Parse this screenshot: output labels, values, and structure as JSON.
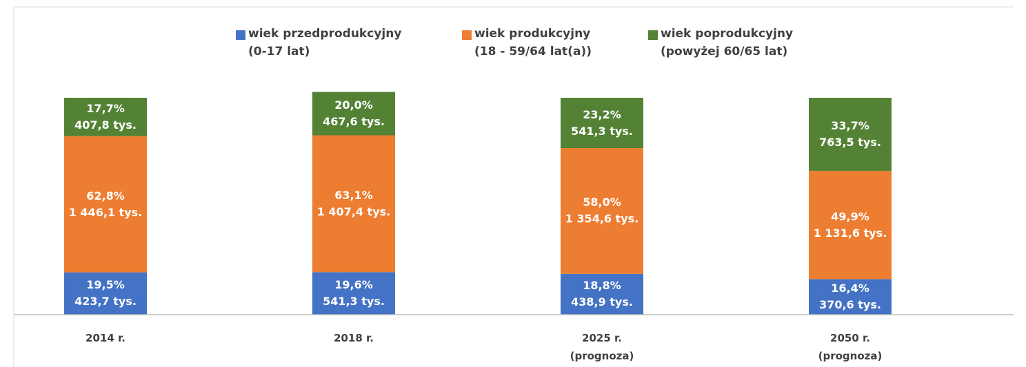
{
  "chart_data": {
    "type": "stacked_bar",
    "categories": [
      "2014 r.",
      "2018 r.",
      "2025 r.\n(prognoza)",
      "2050 r.\n(prognoza)"
    ],
    "ylim": [
      0,
      100
    ],
    "legend": "top",
    "series": [
      {
        "name": "wiek przedprodukcyjny\n(0-17 lat)",
        "color": "#4472c4",
        "values": [
          19.5,
          19.6,
          18.8,
          16.4
        ],
        "value_labels": [
          "19,5%",
          "19,6%",
          "18,8%",
          "16,4%"
        ],
        "count_labels": [
          "423,7 tys.",
          "541,3 tys.",
          "438,9 tys.",
          "370,6 tys."
        ]
      },
      {
        "name": "wiek produkcyjny\n(18 - 59/64 lat(a))",
        "color": "#ed7d31",
        "values": [
          62.8,
          63.1,
          58.0,
          49.9
        ],
        "value_labels": [
          "62,8%",
          "63,1%",
          "58,0%",
          "49,9%"
        ],
        "count_labels": [
          "1 446,1 tys.",
          "1 407,4 tys.",
          "1 354,6 tys.",
          "1 131,6 tys."
        ]
      },
      {
        "name": "wiek poprodukcyjny\n(powyżej 60/65 lat)",
        "color": "#548235",
        "values": [
          17.7,
          20.0,
          23.2,
          33.7
        ],
        "value_labels": [
          "17,7%",
          "20,0%",
          "23,2%",
          "33,7%"
        ],
        "count_labels": [
          "407,8 tys.",
          "467,6 tys.",
          "541,3 tys.",
          "763,5 tys."
        ]
      }
    ]
  }
}
